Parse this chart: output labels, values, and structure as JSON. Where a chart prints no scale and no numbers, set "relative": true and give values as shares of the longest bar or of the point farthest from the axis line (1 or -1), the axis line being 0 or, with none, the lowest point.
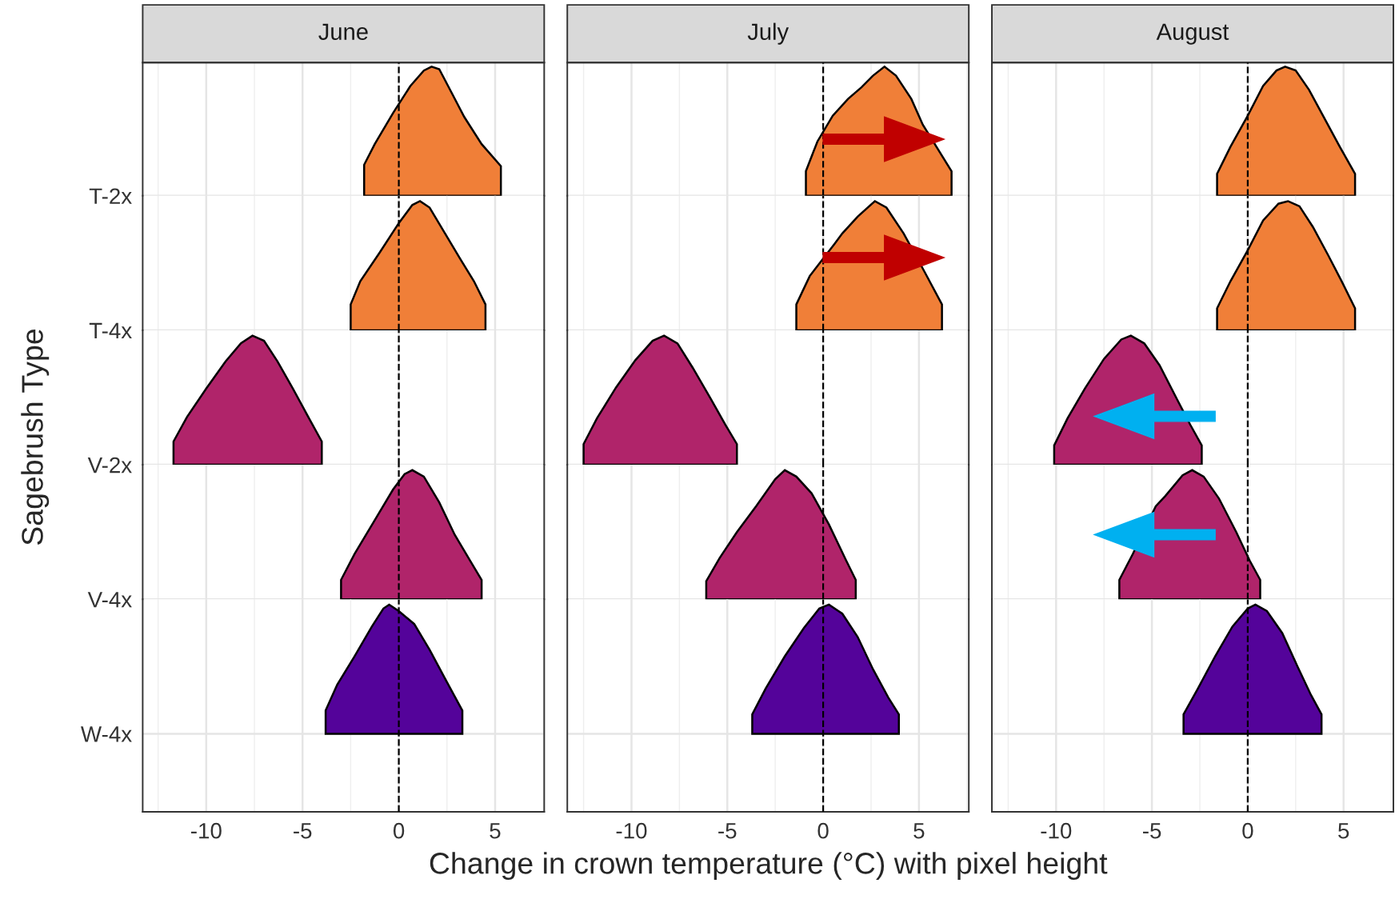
{
  "chart_data": [
    {
      "type": "area",
      "title": "June",
      "relative": true,
      "xlim": [
        -13.3,
        7.55
      ],
      "xticks": [
        -10,
        -5,
        0,
        5
      ],
      "grid": true,
      "tick_labels": "y",
      "ref_lines": [
        {
          "axis": "x",
          "value": 0,
          "line_style": "dashed",
          "color": "#000000"
        }
      ],
      "series": [
        {
          "name": "T-2x",
          "color": "#f07f38",
          "x": [
            -1.8,
            -1.25,
            -0.3,
            0.6,
            1.3,
            1.7,
            2.1,
            2.7,
            3.4,
            4.3,
            5.3
          ],
          "values": [
            0.24,
            0.4,
            0.64,
            0.85,
            0.97,
            1,
            0.98,
            0.81,
            0.61,
            0.4,
            0.23
          ]
        }
      ]
    },
    {
      "type": "area",
      "relative": true,
      "xlim": [
        -13.3,
        7.55
      ],
      "xticks": [
        -10,
        -5,
        0,
        5
      ],
      "grid": true,
      "tick_labels": "y",
      "ref_lines": [
        {
          "axis": "x",
          "value": 0,
          "line_style": "dashed",
          "color": "#000000"
        }
      ],
      "series": [
        {
          "name": "T-4x",
          "color": "#f07f38",
          "x": [
            -2.5,
            -2.0,
            -1.0,
            0,
            0.7,
            1.1,
            1.6,
            2.4,
            3.2,
            3.9,
            4.5
          ],
          "values": [
            0.2,
            0.38,
            0.6,
            0.83,
            0.97,
            1,
            0.95,
            0.75,
            0.55,
            0.38,
            0.2
          ]
        }
      ]
    },
    {
      "type": "area",
      "ylabel": "Sagebrush Type",
      "relative": true,
      "xlim": [
        -13.3,
        7.55
      ],
      "xticks": [
        -10,
        -5,
        0,
        5
      ],
      "grid": true,
      "tick_labels": "y",
      "ref_lines": [
        {
          "axis": "x",
          "value": 0,
          "line_style": "dashed",
          "color": "#000000"
        }
      ],
      "series": [
        {
          "name": "V-2x",
          "color": "#b0246a",
          "x": [
            -11.7,
            -11.0,
            -10.0,
            -9.0,
            -8.2,
            -7.6,
            -7.0,
            -6.3,
            -5.5,
            -4.7,
            -4.0
          ],
          "values": [
            0.18,
            0.37,
            0.59,
            0.8,
            0.94,
            1,
            0.96,
            0.8,
            0.59,
            0.37,
            0.18
          ]
        }
      ]
    },
    {
      "type": "area",
      "relative": true,
      "xlim": [
        -13.3,
        7.55
      ],
      "xticks": [
        -10,
        -5,
        0,
        5
      ],
      "grid": true,
      "tick_labels": "y",
      "ref_lines": [
        {
          "axis": "x",
          "value": 0,
          "line_style": "dashed",
          "color": "#000000"
        }
      ],
      "series": [
        {
          "name": "V-4x",
          "color": "#b0246a",
          "x": [
            -3.0,
            -2.3,
            -1.3,
            -0.3,
            0.3,
            0.7,
            1.3,
            2.1,
            2.9,
            3.7,
            4.3
          ],
          "values": [
            0.15,
            0.35,
            0.6,
            0.85,
            0.97,
            1,
            0.95,
            0.75,
            0.5,
            0.3,
            0.15
          ]
        }
      ]
    },
    {
      "type": "area",
      "relative": true,
      "xlim": [
        -13.3,
        7.55
      ],
      "xticks": [
        -10,
        -5,
        0,
        5
      ],
      "grid": true,
      "ref_lines": [
        {
          "axis": "x",
          "value": 0,
          "line_style": "dashed",
          "color": "#000000"
        }
      ],
      "series": [
        {
          "name": "W-4x",
          "color": "#54039a",
          "x": [
            -3.8,
            -3.2,
            -2.3,
            -1.4,
            -0.8,
            -0.5,
            0,
            0.8,
            1.6,
            2.5,
            3.3
          ],
          "values": [
            0.18,
            0.38,
            0.6,
            0.83,
            0.97,
            1,
            0.95,
            0.85,
            0.65,
            0.4,
            0.18
          ]
        }
      ]
    },
    {
      "type": "area",
      "title": "July",
      "relative": true,
      "xlim": [
        -13.35,
        7.6
      ],
      "xticks": [
        -10,
        -5,
        0,
        5
      ],
      "grid": true,
      "tick_labels": false,
      "ref_lines": [
        {
          "axis": "x",
          "value": 0,
          "line_style": "dashed",
          "color": "#000000"
        }
      ],
      "series": [
        {
          "color": "#f07f38",
          "x": [
            -0.9,
            -0.3,
            0.5,
            1.3,
            2.0,
            2.6,
            3.2,
            3.8,
            4.6,
            5.2,
            6.7
          ],
          "values": [
            0.19,
            0.42,
            0.62,
            0.75,
            0.84,
            0.93,
            1,
            0.93,
            0.75,
            0.55,
            0.19
          ]
        }
      ]
    },
    {
      "type": "area",
      "relative": true,
      "xlim": [
        -13.35,
        7.6
      ],
      "xticks": [
        -10,
        -5,
        0,
        5
      ],
      "grid": true,
      "tick_labels": false,
      "ref_lines": [
        {
          "axis": "x",
          "value": 0,
          "line_style": "dashed",
          "color": "#000000"
        }
      ],
      "series": [
        {
          "color": "#f07f38",
          "x": [
            -1.4,
            -0.7,
            0.6,
            1.0,
            1.8,
            2.7,
            3.3,
            4.2,
            5.3,
            6.2
          ],
          "values": [
            0.2,
            0.42,
            0.67,
            0.75,
            0.88,
            1,
            0.95,
            0.75,
            0.45,
            0.2
          ]
        }
      ]
    },
    {
      "type": "area",
      "relative": true,
      "xlim": [
        -13.35,
        7.6
      ],
      "xticks": [
        -10,
        -5,
        0,
        5
      ],
      "grid": true,
      "tick_labels": false,
      "ref_lines": [
        {
          "axis": "x",
          "value": 0,
          "line_style": "dashed",
          "color": "#000000"
        }
      ],
      "series": [
        {
          "color": "#b0246a",
          "x": [
            -12.5,
            -11.8,
            -10.8,
            -9.8,
            -8.9,
            -8.3,
            -7.6,
            -6.8,
            -5.9,
            -5.1,
            -4.5
          ],
          "values": [
            0.16,
            0.36,
            0.6,
            0.81,
            0.96,
            1,
            0.94,
            0.75,
            0.52,
            0.31,
            0.16
          ]
        }
      ]
    },
    {
      "type": "area",
      "relative": true,
      "xlim": [
        -13.35,
        7.6
      ],
      "xticks": [
        -10,
        -5,
        0,
        5
      ],
      "grid": true,
      "tick_labels": false,
      "ref_lines": [
        {
          "axis": "x",
          "value": 0,
          "line_style": "dashed",
          "color": "#000000"
        }
      ],
      "series": [
        {
          "color": "#b0246a",
          "x": [
            -6.1,
            -5.4,
            -4.5,
            -3.5,
            -2.5,
            -2.0,
            -1.4,
            -0.6,
            0.3,
            1.2,
            1.7
          ],
          "values": [
            0.14,
            0.32,
            0.52,
            0.72,
            0.93,
            1,
            0.95,
            0.82,
            0.58,
            0.3,
            0.15
          ]
        }
      ]
    },
    {
      "type": "area",
      "xlabel": "Change in crown temperature (°C) with pixel height",
      "relative": true,
      "xlim": [
        -13.35,
        7.6
      ],
      "xticks": [
        -10,
        -5,
        0,
        5
      ],
      "grid": true,
      "tick_labels": "x",
      "ref_lines": [
        {
          "axis": "x",
          "value": 0,
          "line_style": "dashed",
          "color": "#000000"
        }
      ],
      "series": [
        {
          "color": "#54039a",
          "x": [
            -3.7,
            -3.0,
            -2.0,
            -1.0,
            -0.2,
            0.3,
            1.0,
            1.8,
            2.6,
            3.4,
            3.95
          ],
          "values": [
            0.15,
            0.35,
            0.6,
            0.82,
            0.97,
            1,
            0.93,
            0.75,
            0.5,
            0.28,
            0.15
          ]
        }
      ]
    },
    {
      "type": "area",
      "title": "August",
      "relative": true,
      "xlim": [
        -13.35,
        7.6
      ],
      "xticks": [
        -10,
        -5,
        0,
        5
      ],
      "grid": true,
      "tick_labels": false,
      "ref_lines": [
        {
          "axis": "x",
          "value": 0,
          "line_style": "dashed",
          "color": "#000000"
        }
      ],
      "series": [
        {
          "color": "#f07f38",
          "x": [
            -1.6,
            -0.9,
            0,
            0.8,
            1.5,
            1.95,
            2.5,
            3.2,
            4.0,
            4.8,
            5.6
          ],
          "values": [
            0.17,
            0.38,
            0.62,
            0.85,
            0.97,
            1,
            0.97,
            0.82,
            0.6,
            0.38,
            0.17
          ]
        }
      ]
    },
    {
      "type": "area",
      "relative": true,
      "xlim": [
        -13.35,
        7.6
      ],
      "xticks": [
        -10,
        -5,
        0,
        5
      ],
      "grid": true,
      "tick_labels": false,
      "ref_lines": [
        {
          "axis": "x",
          "value": 0,
          "line_style": "dashed",
          "color": "#000000"
        }
      ],
      "series": [
        {
          "color": "#f07f38",
          "x": [
            -1.6,
            -0.9,
            0,
            0.8,
            1.6,
            2.1,
            2.7,
            3.4,
            4.2,
            4.9,
            5.6
          ],
          "values": [
            0.17,
            0.38,
            0.62,
            0.85,
            0.98,
            1,
            0.96,
            0.8,
            0.58,
            0.38,
            0.17
          ]
        }
      ]
    },
    {
      "type": "area",
      "relative": true,
      "xlim": [
        -13.35,
        7.6
      ],
      "xticks": [
        -10,
        -5,
        0,
        5
      ],
      "grid": true,
      "tick_labels": false,
      "ref_lines": [
        {
          "axis": "x",
          "value": 0,
          "line_style": "dashed",
          "color": "#000000"
        }
      ],
      "series": [
        {
          "color": "#b0246a",
          "x": [
            -10.1,
            -9.4,
            -8.5,
            -7.5,
            -6.6,
            -6.1,
            -5.4,
            -4.6,
            -3.7,
            -3.0,
            -2.4
          ],
          "values": [
            0.15,
            0.36,
            0.59,
            0.82,
            0.97,
            1,
            0.94,
            0.77,
            0.51,
            0.31,
            0.15
          ]
        }
      ]
    },
    {
      "type": "area",
      "relative": true,
      "xlim": [
        -13.35,
        7.6
      ],
      "xticks": [
        -10,
        -5,
        0,
        5
      ],
      "grid": true,
      "tick_labels": false,
      "ref_lines": [
        {
          "axis": "x",
          "value": 0,
          "line_style": "dashed",
          "color": "#000000"
        }
      ],
      "series": [
        {
          "color": "#b0246a",
          "x": [
            -6.7,
            -6.0,
            -4.8,
            -4.3,
            -3.4,
            -2.9,
            -2.3,
            -1.5,
            -0.6,
            0.1,
            0.65
          ],
          "values": [
            0.15,
            0.35,
            0.72,
            0.8,
            0.96,
            1,
            0.95,
            0.78,
            0.52,
            0.3,
            0.15
          ]
        }
      ]
    },
    {
      "type": "area",
      "relative": true,
      "xlim": [
        -13.35,
        7.6
      ],
      "xticks": [
        -10,
        -5,
        0,
        5
      ],
      "grid": true,
      "tick_labels": "x",
      "ref_lines": [
        {
          "axis": "x",
          "value": 0,
          "line_style": "dashed",
          "color": "#000000"
        }
      ],
      "series": [
        {
          "color": "#54039a",
          "x": [
            -3.35,
            -2.6,
            -1.7,
            -0.8,
            0,
            0.4,
            1.0,
            1.8,
            2.6,
            3.3,
            3.85
          ],
          "values": [
            0.15,
            0.35,
            0.6,
            0.83,
            0.97,
            1,
            0.95,
            0.78,
            0.52,
            0.3,
            0.15
          ]
        }
      ]
    }
  ]
}
